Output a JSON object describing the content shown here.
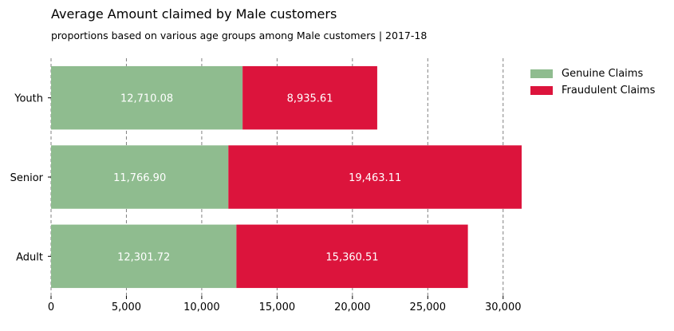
{
  "chart_data": {
    "type": "bar",
    "orientation": "horizontal",
    "stacked": true,
    "title": "Average Amount claimed by Male customers",
    "subtitle": "proportions based on various age groups among Male customers | 2017-18",
    "categories": [
      "Youth",
      "Senior",
      "Adult"
    ],
    "series": [
      {
        "name": "Genuine Claims",
        "values": [
          12710.08,
          11766.9,
          12301.72
        ],
        "labels": [
          "12,710.08",
          "11,766.90",
          "12,301.72"
        ],
        "color": "#8fbc8f"
      },
      {
        "name": "Fraudulent Claims",
        "values": [
          8935.61,
          19463.11,
          15360.51
        ],
        "labels": [
          "8,935.61",
          "19,463.11",
          "15,360.51"
        ],
        "color": "#dc143c"
      }
    ],
    "x_ticks": [
      0,
      5000,
      10000,
      15000,
      20000,
      25000,
      30000
    ],
    "x_tick_labels": [
      "0",
      "5,000",
      "10,000",
      "15,000",
      "20,000",
      "25,000",
      "30,000"
    ],
    "xlim": [
      0,
      31230
    ],
    "grid": "vertical dashed",
    "legend_position": "top-right",
    "value_label_color": "#ffffff"
  }
}
